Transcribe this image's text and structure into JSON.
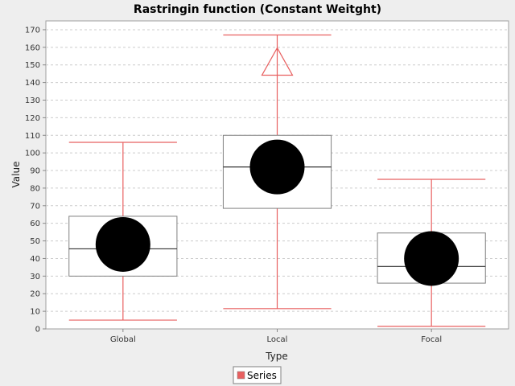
{
  "chart_data": {
    "type": "boxplot",
    "title": "Rastringin function (Constant Weitght)",
    "xlabel": "Type",
    "ylabel": "Value",
    "ylim": [
      0,
      175
    ],
    "yticks": [
      0,
      10,
      20,
      30,
      40,
      50,
      60,
      70,
      80,
      90,
      100,
      110,
      120,
      130,
      140,
      150,
      160,
      170
    ],
    "grid": true,
    "legend_position": "bottom",
    "series": [
      {
        "name": "Series",
        "color": "#e86060"
      }
    ],
    "categories": [
      "Global",
      "Local",
      "Focal"
    ],
    "boxes": [
      {
        "category": "Global",
        "whisker_low": 5,
        "q1": 30,
        "median": 45.5,
        "q3": 64,
        "whisker_high": 106,
        "mean": 48,
        "outliers": []
      },
      {
        "category": "Local",
        "whisker_low": 11.5,
        "q1": 68.5,
        "median": 92,
        "q3": 110,
        "whisker_high": 167,
        "mean": 92,
        "outliers": [
          {
            "value": 151,
            "shape": "triangle"
          }
        ]
      },
      {
        "category": "Focal",
        "whisker_low": 1.5,
        "q1": 26,
        "median": 35.5,
        "q3": 54.5,
        "whisker_high": 85,
        "mean": 40,
        "outliers": []
      }
    ],
    "colors": {
      "whisker": "#e86060",
      "box_border": "#808080",
      "median": "#333333",
      "mean_marker": "#000000",
      "plot_bg": "#ffffff",
      "page_bg": "#eeeeee",
      "grid": "#cccccc"
    }
  }
}
